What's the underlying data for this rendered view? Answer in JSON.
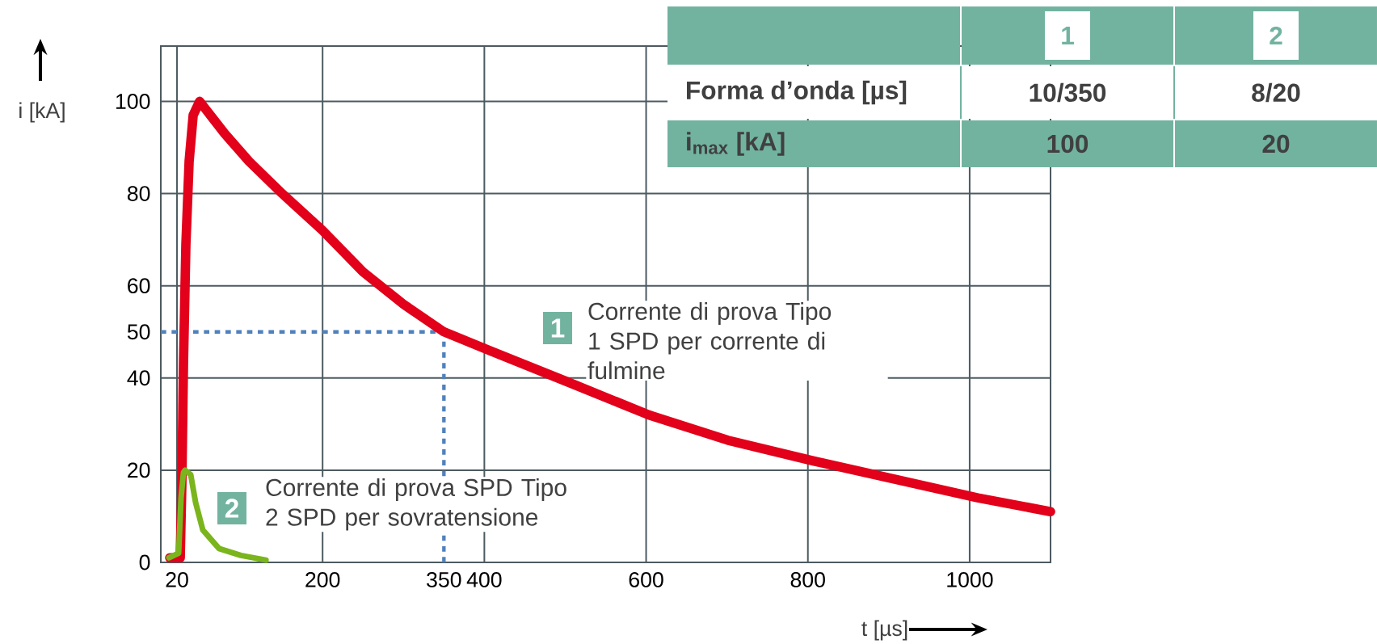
{
  "chart_data": [
    {
      "type": "line",
      "xlabel": "t [µs]",
      "ylabel": "i [kA]",
      "xlim": [
        0,
        1100
      ],
      "ylim": [
        0,
        112
      ],
      "xticks": [
        20,
        200,
        350,
        400,
        600,
        800,
        1000
      ],
      "yticks": [
        0,
        20,
        40,
        50,
        60,
        80,
        100
      ],
      "grid": true,
      "series": [
        {
          "name": "1",
          "color": "#e2001a",
          "x": [
            11,
            24,
            26,
            28,
            31,
            35,
            40,
            48,
            79,
            109,
            150,
            200,
            250,
            300,
            350,
            406,
            505,
            603,
            701,
            807,
            1010,
            1100
          ],
          "values": [
            1,
            1,
            17,
            43,
            69,
            87,
            97,
            100,
            93,
            87,
            80,
            72,
            63,
            56,
            50,
            46,
            39,
            32,
            26.5,
            22,
            14,
            11
          ]
        },
        {
          "name": "2",
          "color": "#7ab51d",
          "x": [
            10,
            22,
            25,
            28,
            30,
            37,
            43,
            52,
            72,
            99,
            130
          ],
          "values": [
            1,
            2,
            14,
            19.5,
            20,
            19,
            13,
            7,
            3,
            1.5,
            0.5
          ]
        }
      ],
      "ref_lines": [
        {
          "axis": "x",
          "value": 350,
          "color": "#4f81bd",
          "line_style": "dotted"
        },
        {
          "axis": "y",
          "value": 50,
          "color": "#4f81bd",
          "line_style": "dotted"
        }
      ],
      "annotations": [
        "Corrente di prova Tipo 1 SPD per corrente di fulmine",
        "Corrente di prova SPD Tipo 2 SPD per sovratensione"
      ]
    },
    {
      "type": "other",
      "annotations": [
        "1",
        "2",
        "Forma d’onda [µs]",
        "10/350",
        "8/20",
        "i$_{max}$ [kA]",
        "100",
        "20"
      ]
    }
  ]
}
